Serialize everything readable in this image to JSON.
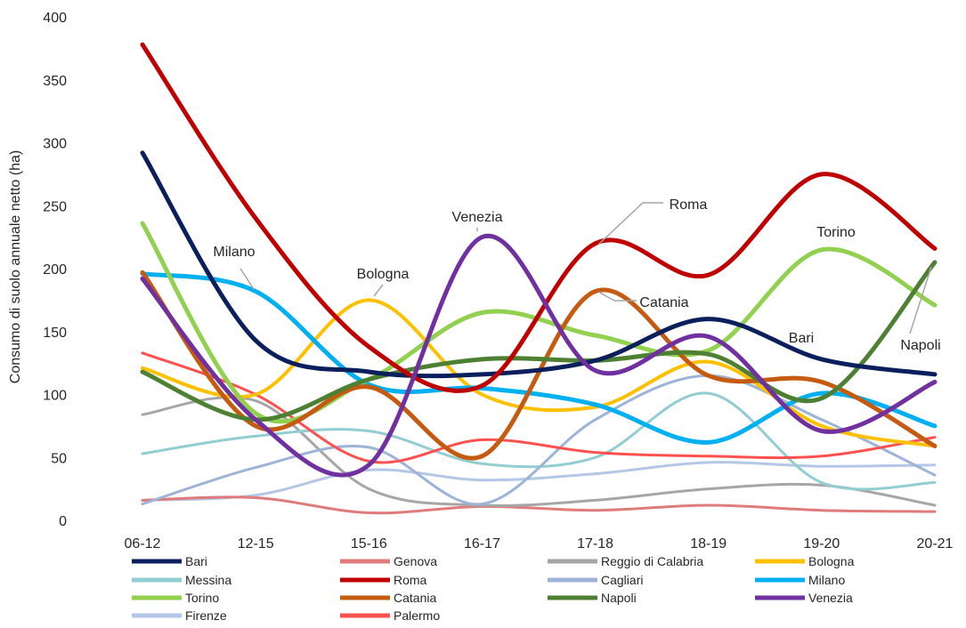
{
  "chart_data": {
    "type": "line",
    "ylabel": "Consumo di suolo annuale netto (ha)",
    "categories": [
      "06-12",
      "12-15",
      "15-16",
      "16-17",
      "17-18",
      "18-19",
      "19-20",
      "20-21"
    ],
    "ylim": [
      0,
      400
    ],
    "yticks": [
      0,
      50,
      100,
      150,
      200,
      250,
      300,
      350,
      400
    ],
    "grid": false,
    "smooth": true,
    "legend_position": "bottom",
    "series": [
      {
        "name": "Bari",
        "color": "#0b1f5c",
        "width": 5,
        "values": [
          292,
          143,
          118,
          116,
          127,
          160,
          128,
          116
        ]
      },
      {
        "name": "Genova",
        "color": "#e07b7b",
        "width": 3,
        "values": [
          16,
          18,
          6,
          11,
          8,
          12,
          8,
          7
        ]
      },
      {
        "name": "Reggio di Calabria",
        "color": "#a6a6a6",
        "width": 3,
        "values": [
          84,
          95,
          25,
          12,
          16,
          25,
          28,
          12
        ]
      },
      {
        "name": "Bologna",
        "color": "#ffc000",
        "width": 4,
        "values": [
          121,
          100,
          175,
          100,
          90,
          126,
          75,
          59
        ]
      },
      {
        "name": "Messina",
        "color": "#92cdd1",
        "width": 3,
        "values": [
          53,
          67,
          71,
          45,
          50,
          101,
          30,
          30
        ]
      },
      {
        "name": "Roma",
        "color": "#c00000",
        "width": 5,
        "values": [
          378,
          240,
          138,
          107,
          220,
          195,
          275,
          216
        ]
      },
      {
        "name": "Cagliari",
        "color": "#9db3d7",
        "width": 3,
        "values": [
          13,
          42,
          58,
          13,
          80,
          115,
          80,
          36
        ]
      },
      {
        "name": "Milano",
        "color": "#00b0f0",
        "width": 5,
        "values": [
          196,
          182,
          108,
          105,
          92,
          62,
          101,
          75
        ]
      },
      {
        "name": "Torino",
        "color": "#92d050",
        "width": 5,
        "values": [
          236,
          85,
          112,
          165,
          147,
          135,
          215,
          171
        ]
      },
      {
        "name": "Catania",
        "color": "#c55a11",
        "width": 5,
        "values": [
          197,
          75,
          106,
          51,
          182,
          115,
          110,
          59
        ]
      },
      {
        "name": "Napoli",
        "color": "#4e8033",
        "width": 5,
        "values": [
          118,
          80,
          112,
          128,
          127,
          132,
          97,
          205
        ]
      },
      {
        "name": "Venezia",
        "color": "#7030a0",
        "width": 5,
        "values": [
          192,
          80,
          44,
          225,
          119,
          146,
          71,
          110
        ]
      },
      {
        "name": "Firenze",
        "color": "#b4c7e7",
        "width": 3,
        "values": [
          16,
          20,
          40,
          32,
          37,
          46,
          43,
          44
        ]
      },
      {
        "name": "Palermo",
        "color": "#ff5050",
        "width": 3,
        "values": [
          133,
          100,
          47,
          64,
          54,
          51,
          51,
          66
        ]
      }
    ],
    "annotations": [
      "Milano",
      "Bologna",
      "Venezia",
      "Roma",
      "Catania",
      "Torino",
      "Bari",
      "Napoli"
    ]
  }
}
